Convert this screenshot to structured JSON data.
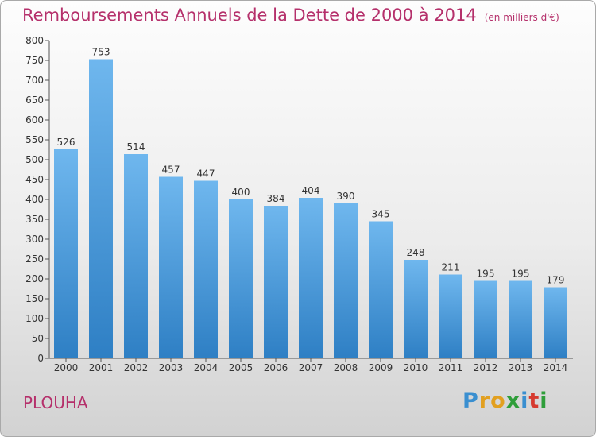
{
  "title": "Remboursements Annuels de la Dette de 2000 à 2014",
  "unit_note": "(en milliers d'€)",
  "commune": "PLOUHA",
  "logo": {
    "letters": [
      "P",
      "r",
      "o",
      "x",
      "i",
      "t",
      "i"
    ],
    "colors": [
      "#3a8fd0",
      "#e2a020",
      "#e2a020",
      "#2f9e3a",
      "#3a8fd0",
      "#d63a2f",
      "#2f9e3a"
    ]
  },
  "colors": {
    "bar_top": "#6fb7ee",
    "bar_bottom": "#2e7fc4",
    "title": "#b5306b"
  },
  "chart_data": {
    "type": "bar",
    "categories": [
      "2000",
      "2001",
      "2002",
      "2003",
      "2004",
      "2005",
      "2006",
      "2007",
      "2008",
      "2009",
      "2010",
      "2011",
      "2012",
      "2013",
      "2014"
    ],
    "values": [
      526,
      753,
      514,
      457,
      447,
      400,
      384,
      404,
      390,
      345,
      248,
      211,
      195,
      195,
      179
    ],
    "title": "Remboursements Annuels de la Dette de 2000 à 2014",
    "ylim": [
      0,
      800
    ],
    "yticks": [
      0,
      50,
      100,
      150,
      200,
      250,
      300,
      350,
      400,
      450,
      500,
      550,
      600,
      650,
      700,
      750,
      800
    ],
    "grid": false,
    "legend": "none"
  }
}
